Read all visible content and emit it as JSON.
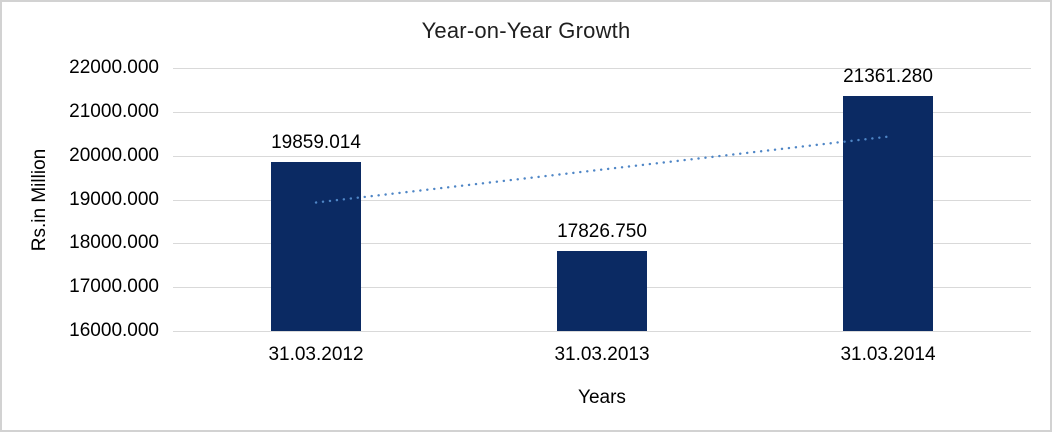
{
  "chart_data": {
    "type": "bar",
    "title": "Year-on-Year Growth",
    "xlabel": "Years",
    "ylabel": "Rs.in Million",
    "categories": [
      "31.03.2012",
      "31.03.2013",
      "31.03.2014"
    ],
    "values": [
      19859.014,
      17826.75,
      21361.28
    ],
    "data_labels": [
      "19859.014",
      "17826.750",
      "21361.280"
    ],
    "ylim": [
      16000,
      22000
    ],
    "ytick_step": 1000,
    "ytick_labels": [
      "22000.000",
      "21000.000",
      "20000.000",
      "19000.000",
      "18000.000",
      "17000.000",
      "16000.000"
    ],
    "grid": true,
    "legend": "none",
    "trendline": {
      "type": "linear",
      "style": "dotted"
    }
  },
  "colors": {
    "bar": "#0b2a63",
    "trendline": "#4f86c6",
    "gridline": "#d9d9d9",
    "title_text": "#1f1f1f",
    "axis_text": "#000000",
    "frame_border": "#d2d2d2",
    "background": "#ffffff"
  }
}
